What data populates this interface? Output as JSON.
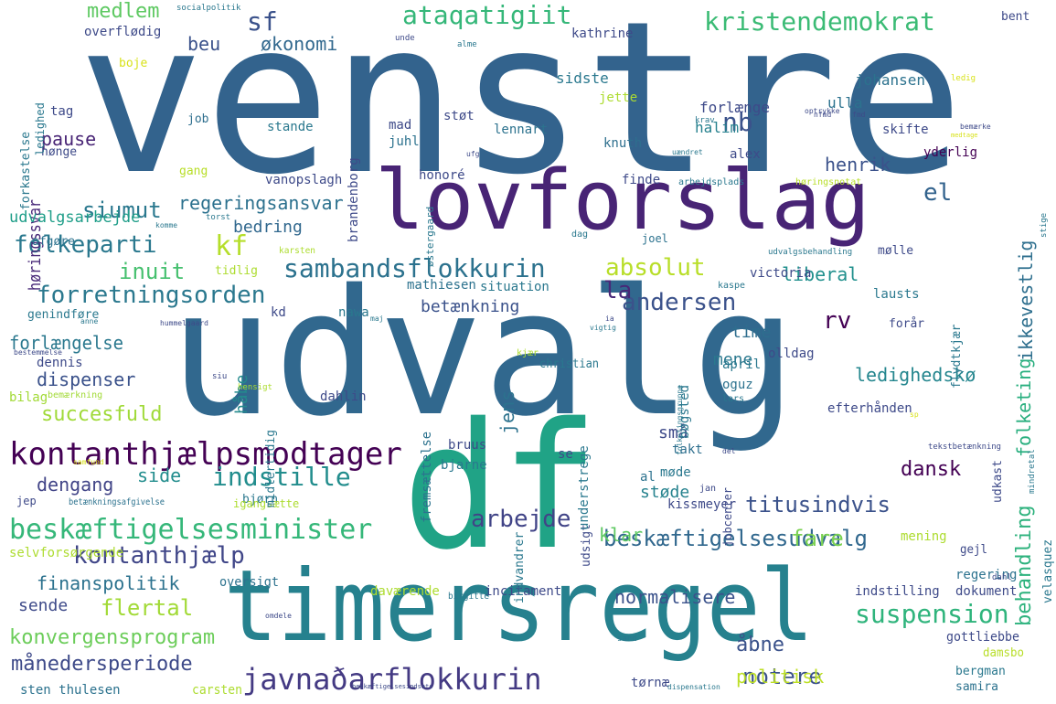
{
  "word_cloud": {
    "words": [
      {
        "text": "venstre",
        "color": "#33638d",
        "weight": 230
      },
      {
        "text": "udvalg",
        "color": "#31688e",
        "weight": 190
      },
      {
        "text": "df",
        "color": "#20a386",
        "weight": 190
      },
      {
        "text": "timersregel",
        "color": "#26818e",
        "weight": 108
      },
      {
        "text": "lovforslag",
        "color": "#482475",
        "weight": 90
      },
      {
        "text": "kontanthjælpsmodtager",
        "color": "#440154",
        "weight": 34
      },
      {
        "text": "beskæftigelsesminister",
        "color": "#35b779",
        "weight": 30
      },
      {
        "text": "javnaðarflokkurin",
        "color": "#443a83",
        "weight": 32
      },
      {
        "text": "sambandsflokkurin",
        "color": "#2c728e",
        "weight": 28
      },
      {
        "text": "kristendemokrat",
        "color": "#3bbb75",
        "weight": 28
      },
      {
        "text": "ataqatigiit",
        "color": "#35b779",
        "weight": 28
      },
      {
        "text": "beskæftigelsesudvalg",
        "color": "#31688e",
        "weight": 24
      },
      {
        "text": "forretningsorden",
        "color": "#2a788e",
        "weight": 26
      },
      {
        "text": "suspension",
        "color": "#2fb47c",
        "weight": 28
      },
      {
        "text": "kontanthjælp",
        "color": "#404688",
        "weight": 26
      },
      {
        "text": "indstille",
        "color": "#228d8d",
        "weight": 28
      },
      {
        "text": "arbejde",
        "color": "#414487",
        "weight": 26
      },
      {
        "text": "andersen",
        "color": "#3b528b",
        "weight": 26
      },
      {
        "text": "absolut",
        "color": "#b8de29",
        "weight": 26
      },
      {
        "text": "folkeparti",
        "color": "#2a788e",
        "weight": 26
      },
      {
        "text": "titusindvis",
        "color": "#3b528b",
        "weight": 24
      },
      {
        "text": "flertal",
        "color": "#a2da37",
        "weight": 24
      },
      {
        "text": "fare",
        "color": "#7ad151",
        "weight": 24
      },
      {
        "text": "succesfuld",
        "color": "#a0da39",
        "weight": 22
      },
      {
        "text": "konvergensprogram",
        "color": "#6ccd5a",
        "weight": 22
      },
      {
        "text": "månedersperiode",
        "color": "#3e4a89",
        "weight": 22
      },
      {
        "text": "notere",
        "color": "#3b528b",
        "weight": 24
      },
      {
        "text": "politisk",
        "color": "#bddf26",
        "weight": 20
      },
      {
        "text": "åbne",
        "color": "#3b528b",
        "weight": 22
      },
      {
        "text": "dansk",
        "color": "#440154",
        "weight": 22
      },
      {
        "text": "behandling",
        "color": "#2db27d",
        "weight": 22
      },
      {
        "text": "ikkevestlig",
        "color": "#2e6f8e",
        "weight": 20
      },
      {
        "text": "folketing",
        "color": "#29af7f",
        "weight": 20
      },
      {
        "text": "ledighedskø",
        "color": "#24868e",
        "weight": 20
      },
      {
        "text": "henrik",
        "color": "#3b528b",
        "weight": 20
      },
      {
        "text": "regeringsansvar",
        "color": "#2c718e",
        "weight": 20
      },
      {
        "text": "siumut",
        "color": "#2a788e",
        "weight": 24
      },
      {
        "text": "inuit",
        "color": "#46c06f",
        "weight": 24
      },
      {
        "text": "nb",
        "color": "#3b528b",
        "weight": 28
      },
      {
        "text": "kf",
        "color": "#b5de2b",
        "weight": 30
      },
      {
        "text": "sf",
        "color": "#3b528b",
        "weight": 28
      },
      {
        "text": "el",
        "color": "#33638d",
        "weight": 26
      },
      {
        "text": "la",
        "color": "#482878",
        "weight": 26
      },
      {
        "text": "rv",
        "color": "#440154",
        "weight": 26
      },
      {
        "text": "medlem",
        "color": "#5ec962",
        "weight": 22
      },
      {
        "text": "økonomi",
        "color": "#31688e",
        "weight": 20
      },
      {
        "text": "beu",
        "color": "#3b528b",
        "weight": 20
      },
      {
        "text": "pause",
        "color": "#482475",
        "weight": 20
      },
      {
        "text": "bedring",
        "color": "#31688e",
        "weight": 18
      },
      {
        "text": "liberal",
        "color": "#21908d",
        "weight": 20
      },
      {
        "text": "høringssvar",
        "color": "#482878",
        "weight": 18
      },
      {
        "text": "udvalgsarbejde",
        "color": "#1f9e89",
        "weight": 17
      },
      {
        "text": "forlængelse",
        "color": "#2a788e",
        "weight": 20
      },
      {
        "text": "dispenser",
        "color": "#3b528b",
        "weight": 20
      },
      {
        "text": "side",
        "color": "#228d8d",
        "weight": 20
      },
      {
        "text": "dengang",
        "color": "#414487",
        "weight": 20
      },
      {
        "text": "finanspolitik",
        "color": "#2c728e",
        "weight": 20
      },
      {
        "text": "sende",
        "color": "#3e4a89",
        "weight": 18
      },
      {
        "text": "klar",
        "color": "#5ec962",
        "weight": 20
      },
      {
        "text": "normalisere",
        "color": "#3b528b",
        "weight": 20
      },
      {
        "text": "betænkning",
        "color": "#3b528b",
        "weight": 18
      },
      {
        "text": "jens",
        "color": "#2c728e",
        "weight": 20
      },
      {
        "text": "mene",
        "color": "#2a788e",
        "weight": 18
      },
      {
        "text": "små",
        "color": "#3e4a89",
        "weight": 18
      },
      {
        "text": "støde",
        "color": "#26828e",
        "weight": 18
      },
      {
        "text": "time",
        "color": "#2e6e8e",
        "weight": 18
      },
      {
        "text": "håbe",
        "color": "#238a8d",
        "weight": 18
      },
      {
        "text": "sidste",
        "color": "#2a788e",
        "weight": 16
      },
      {
        "text": "johansen",
        "color": "#2c728e",
        "weight": 16
      },
      {
        "text": "forlænge",
        "color": "#3e4a89",
        "weight": 16
      },
      {
        "text": "halim",
        "color": "#26818e",
        "weight": 16
      },
      {
        "text": "ulla",
        "color": "#2c728e",
        "weight": 16
      },
      {
        "text": "jette",
        "color": "#addc30",
        "weight": 14
      },
      {
        "text": "kathrine",
        "color": "#3e4a89",
        "weight": 14
      },
      {
        "text": "overflødig",
        "color": "#3e4a89",
        "weight": 14
      },
      {
        "text": "boje",
        "color": "#d8e219",
        "weight": 13
      },
      {
        "text": "tag",
        "color": "#3e4a89",
        "weight": 14
      },
      {
        "text": "job",
        "color": "#2e6f8e",
        "weight": 13
      },
      {
        "text": "stande",
        "color": "#2a788e",
        "weight": 14
      },
      {
        "text": "mad",
        "color": "#3e4a89",
        "weight": 14
      },
      {
        "text": "støt",
        "color": "#3e4a89",
        "weight": 14
      },
      {
        "text": "lennart",
        "color": "#2c728e",
        "weight": 14
      },
      {
        "text": "juhl",
        "color": "#2c728e",
        "weight": 14
      },
      {
        "text": "knuth",
        "color": "#2e6f8e",
        "weight": 14
      },
      {
        "text": "alex",
        "color": "#3e4a89",
        "weight": 14
      },
      {
        "text": "skifte",
        "color": "#3e4a89",
        "weight": 14
      },
      {
        "text": "yderlig",
        "color": "#440154",
        "weight": 14
      },
      {
        "text": "brandenborg",
        "color": "#3e4a89",
        "weight": 14
      },
      {
        "text": "honoré",
        "color": "#3e4a89",
        "weight": 14
      },
      {
        "text": "finde",
        "color": "#3e4a89",
        "weight": 14
      },
      {
        "text": "vanopslagh",
        "color": "#3e4a89",
        "weight": 14
      },
      {
        "text": "gang",
        "color": "#b8de29",
        "weight": 13
      },
      {
        "text": "hønge",
        "color": "#3e4a89",
        "weight": 13
      },
      {
        "text": "afgøre",
        "color": "#2c728e",
        "weight": 13
      },
      {
        "text": "tidlig",
        "color": "#addc30",
        "weight": 13
      },
      {
        "text": "mølle",
        "color": "#3e4a89",
        "weight": 13
      },
      {
        "text": "joel",
        "color": "#2c728e",
        "weight": 12
      },
      {
        "text": "mathiesen",
        "color": "#2c728e",
        "weight": 14
      },
      {
        "text": "situation",
        "color": "#2a788e",
        "weight": 14
      },
      {
        "text": "victoria",
        "color": "#3e4a89",
        "weight": 14
      },
      {
        "text": "lausts",
        "color": "#2a788e",
        "weight": 14
      },
      {
        "text": "nawa",
        "color": "#2a788e",
        "weight": 14
      },
      {
        "text": "kd",
        "color": "#3e4a89",
        "weight": 14
      },
      {
        "text": "genindføre",
        "color": "#2a788e",
        "weight": 13
      },
      {
        "text": "dennis",
        "color": "#3e4a89",
        "weight": 14
      },
      {
        "text": "bilag",
        "color": "#a2da37",
        "weight": 14
      },
      {
        "text": "bemærkning",
        "color": "#a2da37",
        "weight": 10
      },
      {
        "text": "dahlin",
        "color": "#3e4a89",
        "weight": 14
      },
      {
        "text": "bøgsted",
        "color": "#2a788e",
        "weight": 14
      },
      {
        "text": "april",
        "color": "#2a788e",
        "weight": 14
      },
      {
        "text": "oguz",
        "color": "#2c728e",
        "weight": 14
      },
      {
        "text": "olldag",
        "color": "#3e4a89",
        "weight": 14
      },
      {
        "text": "forår",
        "color": "#3e4a89",
        "weight": 13
      },
      {
        "text": "christian",
        "color": "#2a788e",
        "weight": 13
      },
      {
        "text": "efterhånden",
        "color": "#3e4a89",
        "weight": 14
      },
      {
        "text": "udkast",
        "color": "#3e4a89",
        "weight": 13
      },
      {
        "text": "bruus",
        "color": "#3e4a89",
        "weight": 14
      },
      {
        "text": "bjarne",
        "color": "#2a788e",
        "weight": 14
      },
      {
        "text": "takt",
        "color": "#2e6f8e",
        "weight": 14
      },
      {
        "text": "se",
        "color": "#3e4a89",
        "weight": 14
      },
      {
        "text": "al",
        "color": "#2c728e",
        "weight": 14
      },
      {
        "text": "møde",
        "color": "#2a788e",
        "weight": 14
      },
      {
        "text": "jobcenter",
        "color": "#3e4a89",
        "weight": 12
      },
      {
        "text": "kissmeyer",
        "color": "#3e4a89",
        "weight": 14
      },
      {
        "text": "udsigt",
        "color": "#3e4a89",
        "weight": 13
      },
      {
        "text": "mening",
        "color": "#addc30",
        "weight": 14
      },
      {
        "text": "gejl",
        "color": "#3e4a89",
        "weight": 13
      },
      {
        "text": "regering",
        "color": "#2c728e",
        "weight": 14
      },
      {
        "text": "indstilling",
        "color": "#3e4a89",
        "weight": 14
      },
      {
        "text": "dokument",
        "color": "#3e4a89",
        "weight": 14
      },
      {
        "text": "gottliebbe",
        "color": "#3e4a89",
        "weight": 14
      },
      {
        "text": "damsbo",
        "color": "#b8de29",
        "weight": 13
      },
      {
        "text": "bergman",
        "color": "#2a788e",
        "weight": 13
      },
      {
        "text": "samira",
        "color": "#2c728e",
        "weight": 13
      },
      {
        "text": "tørnæ",
        "color": "#3e4a89",
        "weight": 14
      },
      {
        "text": "carsten",
        "color": "#addc30",
        "weight": 14
      },
      {
        "text": "sten thulesen",
        "color": "#2c728e",
        "weight": 14
      },
      {
        "text": "daværende",
        "color": "#addc30",
        "weight": 14
      },
      {
        "text": "oversigt",
        "color": "#2c728e",
        "weight": 14
      },
      {
        "text": "incitament",
        "color": "#3e4a89",
        "weight": 14
      },
      {
        "text": "bjørn",
        "color": "#2a788e",
        "weight": 13
      },
      {
        "text": "igangsætte",
        "color": "#addc30",
        "weight": 12
      },
      {
        "text": "jep",
        "color": "#3e4a89",
        "weight": 12
      },
      {
        "text": "betænkningsafgivelse",
        "color": "#2c728e",
        "weight": 10
      },
      {
        "text": "selvforsørgende",
        "color": "#addc30",
        "weight": 14
      },
      {
        "text": "indvandrer",
        "color": "#2a788e",
        "weight": 13
      },
      {
        "text": "fremsættelse",
        "color": "#2c728e",
        "weight": 14
      },
      {
        "text": "understrege",
        "color": "#2a788e",
        "weight": 14
      },
      {
        "text": "midlertidig",
        "color": "#2a788e",
        "weight": 13
      },
      {
        "text": "velasquez",
        "color": "#2a788e",
        "weight": 13
      },
      {
        "text": "flydtkjær",
        "color": "#2a788e",
        "weight": 13
      },
      {
        "text": "stige",
        "color": "#2a788e",
        "weight": 9
      },
      {
        "text": "mindretal",
        "color": "#2a788e",
        "weight": 9
      },
      {
        "text": "forkastelse",
        "color": "#2a788e",
        "weight": 13
      },
      {
        "text": "ledighed",
        "color": "#2a788e",
        "weight": 12
      },
      {
        "text": "østergaard",
        "color": "#2a788e",
        "weight": 11
      },
      {
        "text": "arbejdsplads",
        "color": "#2a788e",
        "weight": 10
      },
      {
        "text": "høringsnotat",
        "color": "#b8de29",
        "weight": 10
      },
      {
        "text": "udvalgsbehandling",
        "color": "#2a788e",
        "weight": 9
      },
      {
        "text": "socialpolitik",
        "color": "#2a788e",
        "weight": 9
      },
      {
        "text": "unde",
        "color": "#3e4a89",
        "weight": 9
      },
      {
        "text": "alme",
        "color": "#2a788e",
        "weight": 9
      },
      {
        "text": "bent",
        "color": "#3e4a89",
        "weight": 13
      },
      {
        "text": "ledig",
        "color": "#d8e219",
        "weight": 9
      },
      {
        "text": "optrykke",
        "color": "#3e4a89",
        "weight": 8
      },
      {
        "text": "krav",
        "color": "#2a788e",
        "weight": 9
      },
      {
        "text": "nfmd",
        "color": "#3e4a89",
        "weight": 8
      },
      {
        "text": "fmd",
        "color": "#3e4a89",
        "weight": 8
      },
      {
        "text": "bemærke",
        "color": "#3e4a89",
        "weight": 8
      },
      {
        "text": "medtage",
        "color": "#d8e219",
        "weight": 7
      },
      {
        "text": "ufg",
        "color": "#3e4a89",
        "weight": 8
      },
      {
        "text": "uændret",
        "color": "#2a788e",
        "weight": 8
      },
      {
        "text": "torst",
        "color": "#2a788e",
        "weight": 9
      },
      {
        "text": "komme",
        "color": "#2a788e",
        "weight": 8
      },
      {
        "text": "dag",
        "color": "#2a788e",
        "weight": 10
      },
      {
        "text": "karsten",
        "color": "#addc30",
        "weight": 10
      },
      {
        "text": "kaspe",
        "color": "#2a788e",
        "weight": 10
      },
      {
        "text": "maj",
        "color": "#2a788e",
        "weight": 8
      },
      {
        "text": "hummelgaard",
        "color": "#3e4a89",
        "weight": 8
      },
      {
        "text": "anne",
        "color": "#2a788e",
        "weight": 8
      },
      {
        "text": "ia",
        "color": "#3e4a89",
        "weight": 8
      },
      {
        "text": "vigtig",
        "color": "#2a788e",
        "weight": 8
      },
      {
        "text": "bestemmelse",
        "color": "#3e4a89",
        "weight": 8
      },
      {
        "text": "kjær",
        "color": "#addc30",
        "weight": 10
      },
      {
        "text": "siu",
        "color": "#3e4a89",
        "weight": 9
      },
      {
        "text": "hensigt",
        "color": "#addc30",
        "weight": 9
      },
      {
        "text": "folketingsgruppe",
        "color": "#2a788e",
        "weight": 8
      },
      {
        "text": "lars",
        "color": "#2a788e",
        "weight": 10
      },
      {
        "text": "sp",
        "color": "#d8e219",
        "weight": 8
      },
      {
        "text": "tekstbetænkning",
        "color": "#3e4a89",
        "weight": 9
      },
      {
        "text": "del",
        "color": "#3e4a89",
        "weight": 8
      },
      {
        "text": "jan",
        "color": "#3e4a89",
        "weight": 10
      },
      {
        "text": "samfund",
        "color": "#d8e219",
        "weight": 8
      },
      {
        "text": "sand",
        "color": "#2a788e",
        "weight": 9
      },
      {
        "text": "birgitte",
        "color": "#2a788e",
        "weight": 10
      },
      {
        "text": "omdele",
        "color": "#3e4a89",
        "weight": 8
      },
      {
        "text": "dispensation",
        "color": "#2a788e",
        "weight": 8
      },
      {
        "text": "beskæftigelsesindsats",
        "color": "#3e4a89",
        "weight": 7
      },
      {
        "text": "dahl",
        "color": "#3e4a89",
        "weight": 9
      }
    ]
  }
}
